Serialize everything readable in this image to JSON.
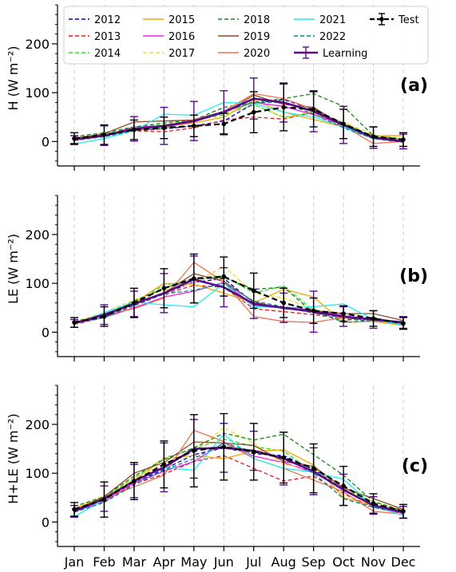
{
  "chart_data": {
    "type": "line",
    "categories": [
      "Jan",
      "Feb",
      "Mar",
      "Apr",
      "May",
      "Jun",
      "Jul",
      "Aug",
      "Sep",
      "Oct",
      "Nov",
      "Dec"
    ],
    "ylim": [
      -50,
      280
    ],
    "yticks": [
      0,
      100,
      200
    ],
    "grid": "vertical-dashed",
    "legend_placement": "top",
    "legend_columns": 5,
    "legend_entries": [
      {
        "name": "2012",
        "color": "#0000cc",
        "dash": "dashed"
      },
      {
        "name": "2013",
        "color": "#e31a1c",
        "dash": "dashed"
      },
      {
        "name": "2014",
        "color": "#33dd33",
        "dash": "dashed"
      },
      {
        "name": "2015",
        "color": "#f2a900",
        "dash": "solid"
      },
      {
        "name": "2016",
        "color": "#ee22ee",
        "dash": "solid"
      },
      {
        "name": "2017",
        "color": "#eedd22",
        "dash": "dashed"
      },
      {
        "name": "2018",
        "color": "#118811",
        "dash": "dashed"
      },
      {
        "name": "2019",
        "color": "#8b4a2b",
        "dash": "solid"
      },
      {
        "name": "2020",
        "color": "#f07050",
        "dash": "solid"
      },
      {
        "name": "2021",
        "color": "#22eeee",
        "dash": "solid"
      },
      {
        "name": "2022",
        "color": "#008b8b",
        "dash": "dashed"
      },
      {
        "name": "Learning",
        "color": "#5a0a8a",
        "dash": "solid",
        "errorbar": true
      },
      {
        "name": "Test",
        "color": "#000000",
        "dash": "dashed",
        "errorbar": true
      }
    ],
    "panels": [
      {
        "label": "(a)",
        "ylabel": "H (W m⁻²)",
        "series": [
          {
            "name": "2012",
            "values": [
              4,
              10,
              22,
              26,
              32,
              42,
              78,
              86,
              66,
              36,
              8,
              2
            ]
          },
          {
            "name": "2013",
            "values": [
              6,
              12,
              22,
              20,
              28,
              44,
              50,
              46,
              60,
              30,
              6,
              0
            ]
          },
          {
            "name": "2014",
            "values": [
              5,
              15,
              28,
              35,
              42,
              55,
              75,
              50,
              58,
              38,
              10,
              2
            ]
          },
          {
            "name": "2015",
            "values": [
              8,
              14,
              26,
              30,
              38,
              50,
              85,
              60,
              45,
              30,
              12,
              12
            ]
          },
          {
            "name": "2016",
            "values": [
              4,
              12,
              30,
              32,
              40,
              60,
              80,
              72,
              55,
              34,
              8,
              0
            ]
          },
          {
            "name": "2017",
            "values": [
              6,
              14,
              24,
              34,
              45,
              58,
              82,
              48,
              62,
              40,
              14,
              5
            ]
          },
          {
            "name": "2018",
            "values": [
              10,
              18,
              30,
              38,
              44,
              70,
              80,
              88,
              98,
              72,
              12,
              5
            ]
          },
          {
            "name": "2019",
            "values": [
              6,
              16,
              40,
              42,
              44,
              58,
              95,
              76,
              70,
              32,
              10,
              2
            ]
          },
          {
            "name": "2020",
            "values": [
              5,
              12,
              24,
              26,
              45,
              62,
              98,
              88,
              66,
              32,
              -4,
              0
            ]
          },
          {
            "name": "2021",
            "values": [
              -5,
              6,
              22,
              56,
              54,
              80,
              78,
              60,
              50,
              30,
              6,
              0
            ]
          },
          {
            "name": "2022",
            "values": [
              2,
              10,
              22,
              28,
              44,
              62,
              80,
              80,
              56,
              28,
              6,
              -2
            ]
          },
          {
            "name": "Learning",
            "values": [
              4,
              12,
              26,
              32,
              42,
              60,
              88,
              80,
              62,
              34,
              8,
              0
            ],
            "errors": [
              8,
              20,
              25,
              38,
              40,
              44,
              42,
              40,
              42,
              38,
              22,
              15
            ]
          },
          {
            "name": "Test",
            "values": [
              6,
              14,
              24,
              28,
              32,
              36,
              60,
              70,
              66,
              36,
              10,
              4
            ],
            "errors": [
              12,
              20,
              20,
              22,
              22,
              22,
              42,
              48,
              36,
              30,
              20,
              14
            ]
          }
        ]
      },
      {
        "label": "(b)",
        "ylabel": "LE (W m⁻²)",
        "series": [
          {
            "name": "2012",
            "values": [
              18,
              32,
              58,
              80,
              102,
              110,
              60,
              50,
              40,
              30,
              24,
              18
            ]
          },
          {
            "name": "2013",
            "values": [
              16,
              30,
              55,
              78,
              96,
              92,
              48,
              42,
              36,
              28,
              22,
              16
            ]
          },
          {
            "name": "2014",
            "values": [
              20,
              34,
              62,
              96,
              108,
              115,
              80,
              95,
              45,
              30,
              28,
              20
            ]
          },
          {
            "name": "2015",
            "values": [
              20,
              36,
              60,
              100,
              98,
              80,
              60,
              88,
              72,
              20,
              22,
              14
            ]
          },
          {
            "name": "2016",
            "values": [
              18,
              30,
              50,
              72,
              84,
              102,
              55,
              50,
              46,
              34,
              24,
              18
            ]
          },
          {
            "name": "2017",
            "values": [
              22,
              40,
              66,
              86,
              100,
              135,
              80,
              70,
              48,
              30,
              28,
              18
            ]
          },
          {
            "name": "2018",
            "values": [
              22,
              34,
              64,
              90,
              108,
              112,
              88,
              92,
              40,
              24,
              30,
              18
            ]
          },
          {
            "name": "2019",
            "values": [
              18,
              36,
              60,
              80,
              120,
              104,
              62,
              48,
              44,
              38,
              38,
              24
            ]
          },
          {
            "name": "2020",
            "values": [
              18,
              36,
              48,
              70,
              143,
              103,
              32,
              22,
              20,
              30,
              26,
              16
            ]
          },
          {
            "name": "2021",
            "values": [
              16,
              40,
              62,
              56,
              52,
              100,
              52,
              50,
              52,
              58,
              26,
              14
            ]
          },
          {
            "name": "2022",
            "values": [
              18,
              30,
              54,
              78,
              86,
              100,
              64,
              52,
              44,
              20,
              24,
              22
            ]
          },
          {
            "name": "Learning",
            "values": [
              18,
              36,
              58,
              80,
              108,
              92,
              58,
              50,
              42,
              32,
              26,
              20
            ],
            "errors": [
              8,
              20,
              26,
              40,
              48,
              40,
              30,
              30,
              42,
              20,
              18,
              12
            ]
          },
          {
            "name": "Test",
            "values": [
              20,
              32,
              60,
              90,
              110,
              114,
              85,
              60,
              44,
              38,
              28,
              18
            ],
            "errors": [
              10,
              20,
              30,
              40,
              50,
              40,
              36,
              30,
              26,
              16,
              16,
              12
            ]
          }
        ]
      },
      {
        "label": "(c)",
        "ylabel": "H+LE (W m⁻²)",
        "series": [
          {
            "name": "2012",
            "values": [
              22,
              42,
              80,
              108,
              138,
              152,
              140,
              136,
              108,
              68,
              32,
              14
            ]
          },
          {
            "name": "2013",
            "values": [
              22,
              42,
              78,
              98,
              124,
              136,
              110,
              84,
              94,
              58,
              30,
              16
            ]
          },
          {
            "name": "2014",
            "values": [
              25,
              50,
              90,
              131,
              150,
              170,
              155,
              145,
              103,
              68,
              38,
              22
            ]
          },
          {
            "name": "2015",
            "values": [
              28,
              50,
              86,
              130,
              136,
              130,
              145,
              148,
              117,
              50,
              34,
              26
            ]
          },
          {
            "name": "2016",
            "values": [
              22,
              42,
              80,
              104,
              124,
              162,
              135,
              122,
              101,
              68,
              32,
              18
            ]
          },
          {
            "name": "2017",
            "values": [
              28,
              54,
              90,
              120,
              145,
              193,
              162,
              118,
              110,
              70,
              42,
              23
            ]
          },
          {
            "name": "2018",
            "values": [
              32,
              52,
              94,
              128,
              152,
              182,
              168,
              180,
              138,
              96,
              42,
              23
            ]
          },
          {
            "name": "2019",
            "values": [
              24,
              52,
              100,
              122,
              164,
              162,
              157,
              124,
              114,
              70,
              48,
              26
            ]
          },
          {
            "name": "2020",
            "values": [
              23,
              48,
              72,
              96,
              188,
              165,
              130,
              110,
              86,
              62,
              22,
              16
            ]
          },
          {
            "name": "2021",
            "values": [
              11,
              46,
              84,
              112,
              106,
              180,
              130,
              110,
              102,
              88,
              32,
              14
            ]
          },
          {
            "name": "2022",
            "values": [
              20,
              40,
              76,
              106,
              130,
              162,
              144,
              132,
              100,
              48,
              30,
              20
            ]
          },
          {
            "name": "Learning",
            "values": [
              22,
              48,
              84,
              112,
              150,
              152,
              146,
              130,
              104,
              66,
              34,
              20
            ],
            "errors": [
              12,
              26,
              34,
              50,
              60,
              50,
              40,
              54,
              48,
              32,
              18,
              12
            ]
          },
          {
            "name": "Test",
            "values": [
              26,
              46,
              84,
              118,
              146,
              154,
              144,
              132,
              110,
              74,
              38,
              22
            ],
            "errors": [
              14,
              36,
              38,
              48,
              74,
              68,
              58,
              52,
              50,
              40,
              20,
              14
            ]
          }
        ]
      }
    ]
  }
}
